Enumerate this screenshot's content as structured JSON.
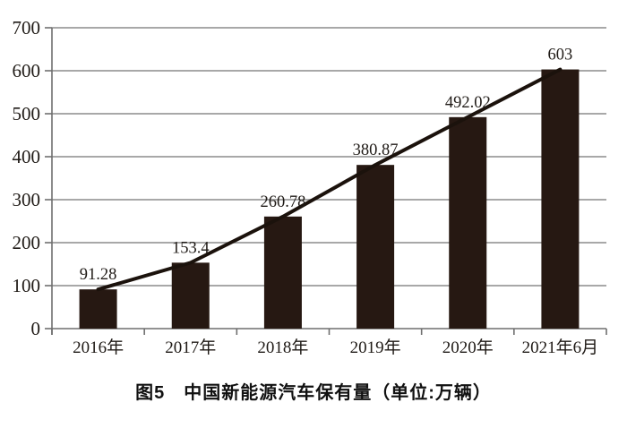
{
  "figure": {
    "caption": "图5　中国新能源汽车保有量（单位:万辆）"
  },
  "chart_data": {
    "type": "bar",
    "title": "图5　中国新能源汽车保有量（单位:万辆）",
    "unit": "万辆",
    "categories": [
      "2016年",
      "2017年",
      "2018年",
      "2019年",
      "2020年",
      "2021年6月"
    ],
    "values": [
      91.28,
      153.4,
      260.78,
      380.87,
      492.02,
      603
    ],
    "value_labels": [
      "91.28",
      "153.4",
      "260.78",
      "380.87",
      "492.02",
      "603"
    ],
    "y_ticks": [
      0,
      100,
      200,
      300,
      400,
      500,
      600,
      700
    ],
    "ylim": [
      0,
      700
    ],
    "grid": true,
    "legend_position": "none",
    "overlay_line": true,
    "colors": {
      "bar": "#261812",
      "line": "#1b120c",
      "grid": "#8c8c8c",
      "axis": "#6f6f6f",
      "text": "#1f1a16"
    }
  }
}
